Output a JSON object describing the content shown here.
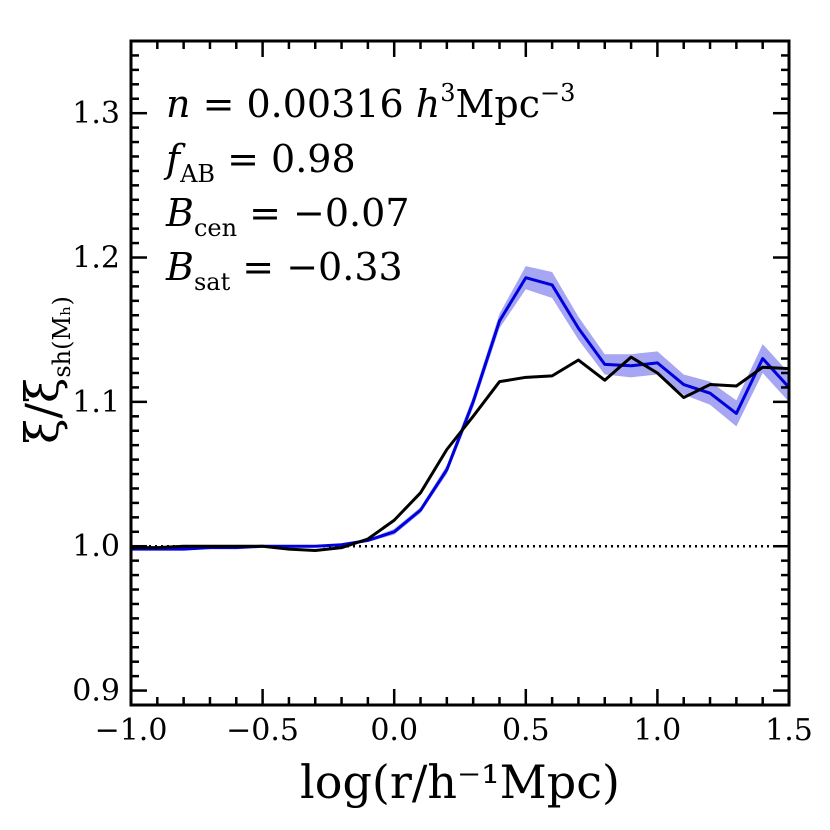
{
  "chart_data": {
    "type": "line",
    "title": "",
    "xlabel": "log(r/h⁻¹Mpc)",
    "ylabel": {
      "main": "ξ/ξ",
      "sub": "sh(Mₕ)"
    },
    "xlim": [
      -1.0,
      1.5
    ],
    "ylim": [
      0.89,
      1.35
    ],
    "xticks": [
      -1.0,
      -0.5,
      0.0,
      0.5,
      1.0,
      1.5
    ],
    "xtick_labels": [
      "−1.0",
      "−0.5",
      "0.0",
      "0.5",
      "1.0",
      "1.5"
    ],
    "yticks": [
      0.9,
      1.0,
      1.1,
      1.2,
      1.3
    ],
    "ytick_labels": [
      "0.9",
      "1.0",
      "1.1",
      "1.2",
      "1.3"
    ],
    "reference_line": {
      "y": 1.0,
      "style": "dotted",
      "color": "#000000"
    },
    "annotations": {
      "n": {
        "sym": "n",
        "eq": " = 0.00316 ",
        "h": "h",
        "h_sup": "3",
        "mpc": "Mpc",
        "mpc_sup": "−3"
      },
      "fab": {
        "sym": "f",
        "sub": "AB",
        "eq": " = 0.98"
      },
      "bcen": {
        "sym": "B",
        "sub": "cen",
        "eq": " = −0.07"
      },
      "bsat": {
        "sym": "B",
        "sub": "sat",
        "eq": " = −0.33"
      }
    },
    "series": [
      {
        "name": "blue",
        "color": "#0000dd",
        "band_color": "#8888ee",
        "x": [
          -1.0,
          -0.9,
          -0.8,
          -0.7,
          -0.6,
          -0.5,
          -0.4,
          -0.3,
          -0.2,
          -0.1,
          0.0,
          0.1,
          0.2,
          0.3,
          0.4,
          0.5,
          0.6,
          0.7,
          0.8,
          0.9,
          1.0,
          1.1,
          1.2,
          1.3,
          1.4,
          1.5
        ],
        "y": [
          0.998,
          0.998,
          0.998,
          0.999,
          0.999,
          1.0,
          1.0,
          1.0,
          1.001,
          1.004,
          1.01,
          1.025,
          1.053,
          1.1,
          1.156,
          1.186,
          1.181,
          1.151,
          1.126,
          1.125,
          1.127,
          1.112,
          1.106,
          1.092,
          1.13,
          1.11
        ],
        "band_halfwidth": [
          0.0,
          0.0,
          0.0,
          0.0,
          0.0,
          0.0,
          0.0,
          0.0,
          0.001,
          0.001,
          0.002,
          0.002,
          0.003,
          0.004,
          0.005,
          0.008,
          0.009,
          0.008,
          0.007,
          0.008,
          0.008,
          0.007,
          0.008,
          0.009,
          0.01,
          0.01
        ]
      },
      {
        "name": "black",
        "color": "#000000",
        "x": [
          -1.0,
          -0.9,
          -0.8,
          -0.7,
          -0.6,
          -0.5,
          -0.4,
          -0.3,
          -0.2,
          -0.1,
          0.0,
          0.1,
          0.2,
          0.3,
          0.4,
          0.5,
          0.6,
          0.7,
          0.8,
          0.9,
          1.0,
          1.1,
          1.2,
          1.3,
          1.4,
          1.5
        ],
        "y": [
          0.999,
          0.999,
          1.0,
          1.0,
          1.0,
          1.0,
          0.998,
          0.997,
          0.999,
          1.005,
          1.018,
          1.037,
          1.067,
          1.09,
          1.114,
          1.117,
          1.118,
          1.129,
          1.115,
          1.131,
          1.12,
          1.103,
          1.112,
          1.111,
          1.124,
          1.123
        ]
      }
    ]
  }
}
